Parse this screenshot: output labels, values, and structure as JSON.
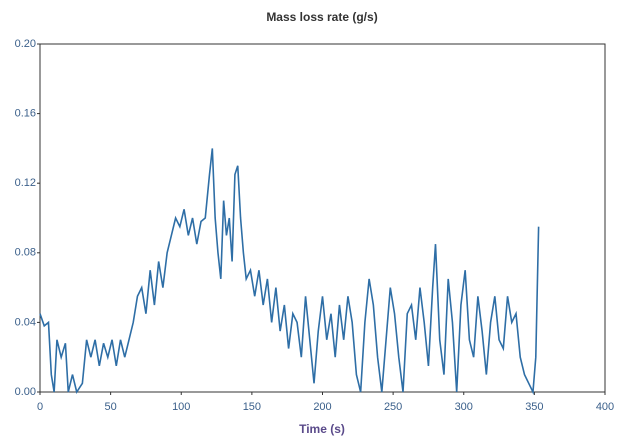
{
  "chart_data": {
    "type": "line",
    "title": "Mass loss rate (g/s)",
    "x_label": "Time (s)",
    "xlim": [
      0,
      400
    ],
    "xticks": [
      0,
      50,
      100,
      150,
      200,
      250,
      300,
      350,
      400
    ],
    "ylim": [
      0,
      0.2
    ],
    "yticks": [
      {
        "value": 0,
        "label": "0.00"
      },
      0.04,
      0.08,
      0.12,
      0.16,
      {
        "value": 0.2,
        "label": "0.20"
      }
    ],
    "grid": false,
    "series": [
      {
        "color": "#2e6ea6",
        "x": [
          0,
          3,
          6,
          8,
          10,
          12,
          15,
          18,
          20,
          23,
          26,
          30,
          33,
          36,
          39,
          42,
          45,
          48,
          51,
          54,
          57,
          60,
          63,
          66,
          69,
          72,
          75,
          78,
          81,
          84,
          87,
          90,
          93,
          96,
          99,
          102,
          105,
          108,
          111,
          114,
          117,
          120,
          122,
          124,
          126,
          128,
          130,
          132,
          134,
          136,
          138,
          140,
          142,
          144,
          146,
          149,
          152,
          155,
          158,
          161,
          164,
          167,
          170,
          173,
          176,
          179,
          182,
          185,
          188,
          191,
          194,
          197,
          200,
          203,
          206,
          209,
          212,
          215,
          218,
          221,
          224,
          227,
          230,
          233,
          236,
          239,
          242,
          245,
          248,
          251,
          254,
          257,
          260,
          263,
          266,
          269,
          272,
          275,
          278,
          280,
          283,
          286,
          289,
          292,
          295,
          298,
          301,
          304,
          307,
          310,
          313,
          316,
          319,
          322,
          325,
          328,
          331,
          334,
          337,
          340,
          343,
          346,
          349,
          351,
          353
        ],
        "values": [
          0.045,
          0.038,
          0.04,
          0.01,
          0.0,
          0.03,
          0.02,
          0.028,
          0.0,
          0.01,
          0.0,
          0.005,
          0.03,
          0.02,
          0.03,
          0.015,
          0.028,
          0.02,
          0.03,
          0.015,
          0.03,
          0.02,
          0.03,
          0.04,
          0.055,
          0.06,
          0.045,
          0.07,
          0.05,
          0.075,
          0.06,
          0.08,
          0.09,
          0.1,
          0.095,
          0.105,
          0.09,
          0.1,
          0.085,
          0.098,
          0.1,
          0.125,
          0.14,
          0.1,
          0.08,
          0.065,
          0.11,
          0.09,
          0.1,
          0.075,
          0.125,
          0.13,
          0.1,
          0.08,
          0.065,
          0.07,
          0.055,
          0.07,
          0.05,
          0.065,
          0.04,
          0.06,
          0.035,
          0.05,
          0.025,
          0.045,
          0.04,
          0.02,
          0.055,
          0.03,
          0.005,
          0.035,
          0.055,
          0.03,
          0.045,
          0.02,
          0.05,
          0.03,
          0.055,
          0.04,
          0.01,
          0.0,
          0.04,
          0.065,
          0.05,
          0.02,
          0.0,
          0.03,
          0.06,
          0.045,
          0.02,
          0.0,
          0.045,
          0.05,
          0.03,
          0.06,
          0.04,
          0.015,
          0.06,
          0.085,
          0.03,
          0.01,
          0.065,
          0.04,
          0.0,
          0.05,
          0.07,
          0.03,
          0.02,
          0.055,
          0.035,
          0.01,
          0.04,
          0.055,
          0.03,
          0.025,
          0.055,
          0.04,
          0.045,
          0.02,
          0.01,
          0.005,
          0.0,
          0.02,
          0.095
        ]
      }
    ]
  }
}
